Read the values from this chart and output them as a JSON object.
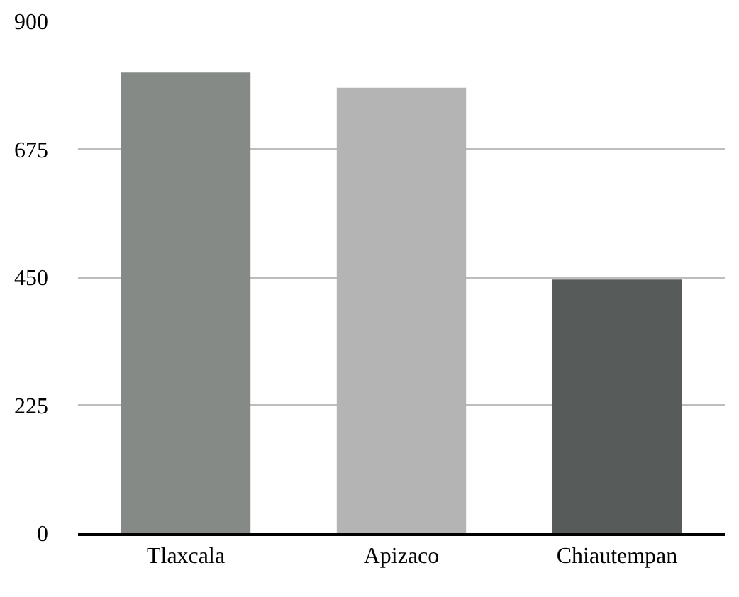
{
  "chart_data": {
    "type": "bar",
    "categories": [
      "Tlaxcala",
      "Apizaco",
      "Chiautempan"
    ],
    "values": [
      810,
      783,
      446
    ],
    "colors": [
      "#858a87",
      "#b4b4b4",
      "#575c5a"
    ],
    "ylim": [
      0,
      900
    ],
    "yticks": [
      0,
      225,
      450,
      675,
      900
    ],
    "grid": "y"
  }
}
